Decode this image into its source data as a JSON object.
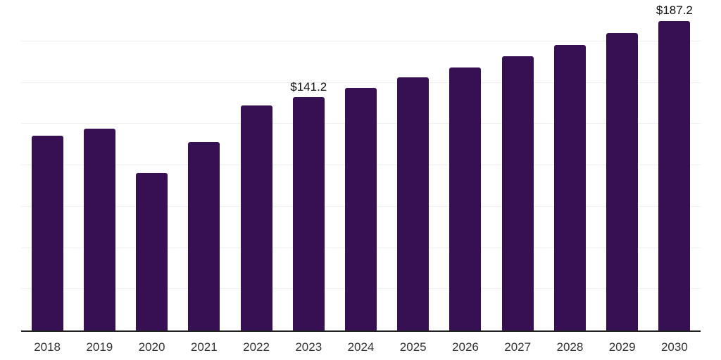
{
  "chart_data": {
    "type": "bar",
    "title": "",
    "xlabel": "",
    "ylabel": "",
    "categories": [
      "2018",
      "2019",
      "2020",
      "2021",
      "2022",
      "2023",
      "2024",
      "2025",
      "2026",
      "2027",
      "2028",
      "2029",
      "2030"
    ],
    "values": [
      118.0,
      122.1,
      95.3,
      113.9,
      136.1,
      141.2,
      147.0,
      153.0,
      159.3,
      165.8,
      172.7,
      179.8,
      187.2
    ],
    "point_labels": [
      {
        "index": 5,
        "text": "$141.2"
      },
      {
        "index": 12,
        "text": "$187.2"
      }
    ],
    "ylim": [
      0,
      200
    ],
    "grid_interval": 25,
    "grid": "horizontal-only",
    "legend": "none",
    "y_axis_tick_labels": "none",
    "value_prefix": "$",
    "colors": {
      "bar": "#361052",
      "axis_line": "#222222",
      "gridline": "#f0f0f0",
      "x_label": "#333333",
      "value_label": "#0d0d0d",
      "background": "#ffffff"
    }
  }
}
